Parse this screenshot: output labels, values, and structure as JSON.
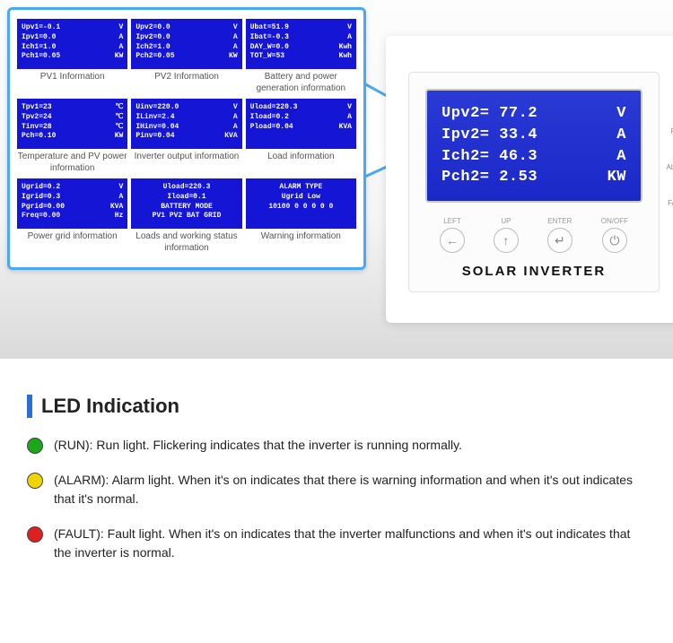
{
  "overlay": {
    "tiles": [
      [
        {
          "lines": [
            [
              "Upv1=-0.1",
              "V"
            ],
            [
              "Ipv1=0.0",
              "A"
            ],
            [
              "Ich1=1.0",
              "A"
            ],
            [
              "Pch1=0.05",
              "KW"
            ]
          ],
          "caption": "PV1 Information"
        },
        {
          "lines": [
            [
              "Upv2=0.0",
              "V"
            ],
            [
              "Ipv2=0.0",
              "A"
            ],
            [
              "Ich2=1.0",
              "A"
            ],
            [
              "Pch2=0.05",
              "KW"
            ]
          ],
          "caption": "PV2 Information"
        },
        {
          "lines": [
            [
              "Ubat=51.9",
              "V"
            ],
            [
              "Ibat=-0.3",
              "A"
            ],
            [
              "DAY_W=0.0",
              "Kwh"
            ],
            [
              "TOT_W=53",
              "Kwh"
            ]
          ],
          "caption": "Battery and power generation information"
        }
      ],
      [
        {
          "lines": [
            [
              "Tpv1=23",
              "℃"
            ],
            [
              "Tpv2=24",
              "℃"
            ],
            [
              "Tinv=28",
              "℃"
            ],
            [
              "Pch=0.10",
              "KW"
            ]
          ],
          "caption": "Temperature and PV power information"
        },
        {
          "lines": [
            [
              "Uinv=220.0",
              "V"
            ],
            [
              "ILinv=2.4",
              "A"
            ],
            [
              "IHinv=0.04",
              "A"
            ],
            [
              "Pinv=0.04",
              "KVA"
            ]
          ],
          "caption": "Inverter output information"
        },
        {
          "lines": [
            [
              "Uload=220.3",
              "V"
            ],
            [
              "Iload=0.2",
              "A"
            ],
            [
              "Pload=0.04",
              "KVA"
            ]
          ],
          "caption": "Load information"
        }
      ],
      [
        {
          "lines": [
            [
              "Ugrid=0.2",
              "V"
            ],
            [
              "Igrid=0.3",
              "A"
            ],
            [
              "Pgrid=0.00",
              "KVA"
            ],
            [
              "Freq=0.00",
              "Hz"
            ]
          ],
          "caption": "Power grid information"
        },
        {
          "center": true,
          "lines": [
            [
              "Uload=220.3",
              ""
            ],
            [
              "Iload=0.1",
              ""
            ],
            [
              "BATTERY MODE",
              ""
            ],
            [
              "PV1  PV2  BAT  GRID",
              ""
            ]
          ],
          "caption": "Loads and working status information"
        },
        {
          "center": true,
          "lines": [
            [
              "ALARM  TYPE",
              ""
            ],
            [
              "Ugrid Low",
              ""
            ],
            [
              "10100  0  0  0  0  0",
              ""
            ]
          ],
          "caption": "Warning information"
        }
      ]
    ]
  },
  "device": {
    "screen_lines": [
      {
        "k": "Upv2=",
        "v": "77.2",
        "u": "V"
      },
      {
        "k": "Ipv2=",
        "v": "33.4",
        "u": "A"
      },
      {
        "k": "Ich2=",
        "v": "46.3",
        "u": "A"
      },
      {
        "k": "Pch2=",
        "v": "2.53",
        "u": "KW"
      }
    ],
    "leds": [
      {
        "color": "#1aa81a",
        "label": "RUN"
      },
      {
        "color": "#f0c400",
        "label": "ALARM"
      },
      {
        "color": "#e02020",
        "label": "FAULT"
      }
    ],
    "buttons": [
      {
        "label": "LEFT",
        "glyph": "←"
      },
      {
        "label": "UP",
        "glyph": "↑"
      },
      {
        "label": "ENTER",
        "glyph": "↵"
      },
      {
        "label": "ON/OFF",
        "glyph": "⏻"
      }
    ],
    "brand": "SOLAR INVERTER"
  },
  "led_section": {
    "title": "LED Indication",
    "items": [
      {
        "color": "#1aa81a",
        "name": "(RUN):",
        "desc": "Run light. Flickering indicates that the inverter is running normally."
      },
      {
        "color": "#f0d400",
        "name": "(ALARM):",
        "desc": "Alarm light. When it's on indicates that there is warning information and when it's out indicates that it's normal."
      },
      {
        "color": "#e02020",
        "name": "(FAULT):",
        "desc": "Fault light. When it's on indicates that the inverter malfunctions and when it's out indicates that the inverter is normal."
      }
    ]
  }
}
